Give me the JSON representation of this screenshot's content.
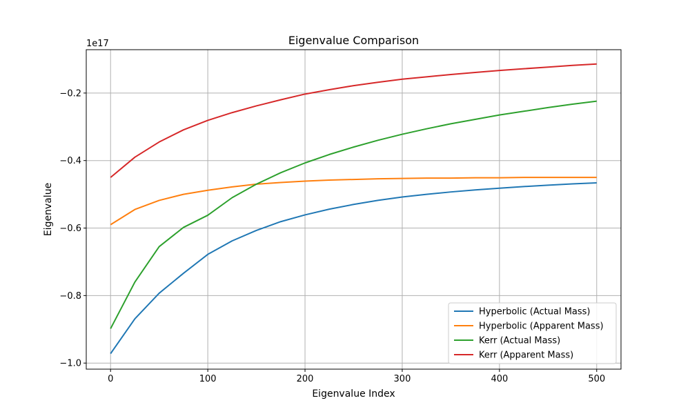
{
  "chart_data": {
    "type": "line",
    "title": "Eigenvalue Comparison",
    "xlabel": "Eigenvalue Index",
    "ylabel": "Eigenvalue",
    "y_offset_label": "1e17",
    "xlim": [
      -25,
      525
    ],
    "ylim": [
      -1.018,
      -0.0715
    ],
    "xticks": [
      0,
      100,
      200,
      300,
      400,
      500
    ],
    "yticks": [
      -1.0,
      -0.8,
      -0.6,
      -0.4,
      -0.2
    ],
    "ytick_labels": [
      "−1.0",
      "−0.8",
      "−0.6",
      "−0.4",
      "−0.2"
    ],
    "grid": true,
    "legend_position": "lower-right",
    "x": [
      0,
      25,
      50,
      75,
      100,
      125,
      150,
      175,
      200,
      225,
      250,
      275,
      300,
      325,
      350,
      375,
      400,
      425,
      450,
      475,
      500
    ],
    "series": [
      {
        "name": "Hyperbolic (Actual Mass)",
        "color": "#1f77b4",
        "values": [
          -0.972,
          -0.869,
          -0.793,
          -0.734,
          -0.678,
          -0.638,
          -0.607,
          -0.581,
          -0.561,
          -0.544,
          -0.53,
          -0.518,
          -0.508,
          -0.5,
          -0.493,
          -0.487,
          -0.482,
          -0.477,
          -0.473,
          -0.469,
          -0.466
        ]
      },
      {
        "name": "Hyperbolic (Apparent Mass)",
        "color": "#ff7f0e",
        "values": [
          -0.59,
          -0.545,
          -0.518,
          -0.5,
          -0.488,
          -0.478,
          -0.47,
          -0.465,
          -0.461,
          -0.458,
          -0.456,
          -0.454,
          -0.453,
          -0.452,
          -0.452,
          -0.451,
          -0.451,
          -0.45,
          -0.45,
          -0.45,
          -0.45
        ]
      },
      {
        "name": "Kerr (Actual Mass)",
        "color": "#2ca02c",
        "values": [
          -0.898,
          -0.76,
          -0.655,
          -0.598,
          -0.562,
          -0.51,
          -0.47,
          -0.436,
          -0.407,
          -0.382,
          -0.36,
          -0.34,
          -0.322,
          -0.306,
          -0.291,
          -0.278,
          -0.265,
          -0.254,
          -0.243,
          -0.233,
          -0.224
        ]
      },
      {
        "name": "Kerr (Apparent Mass)",
        "color": "#d62728",
        "values": [
          -0.45,
          -0.39,
          -0.345,
          -0.309,
          -0.281,
          -0.258,
          -0.238,
          -0.22,
          -0.203,
          -0.19,
          -0.178,
          -0.168,
          -0.159,
          -0.152,
          -0.145,
          -0.139,
          -0.133,
          -0.128,
          -0.123,
          -0.118,
          -0.114
        ]
      }
    ]
  }
}
